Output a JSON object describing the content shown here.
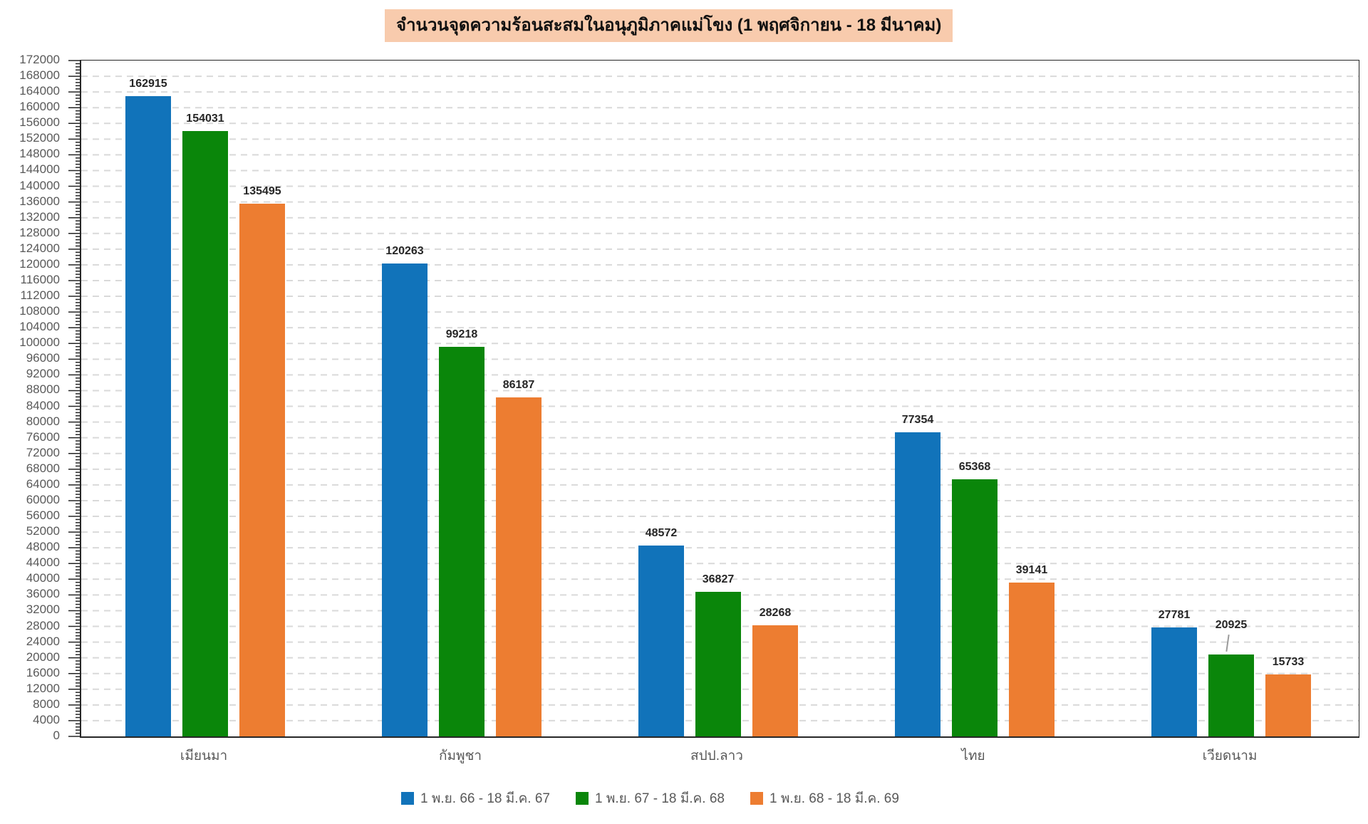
{
  "chart_data": {
    "type": "bar",
    "title": "จำนวนจุดความร้อนสะสมในอนุภูมิภาคแม่โขง (1 พฤศจิกายน - 18 มีนาคม)",
    "categories": [
      "เมียนมา",
      "กัมพูชา",
      "สปป.ลาว",
      "ไทย",
      "เวียดนาม"
    ],
    "series": [
      {
        "name": "1 พ.ย. 66 - 18 มี.ค. 67",
        "color": "#1173BA",
        "values": [
          162915,
          120263,
          48572,
          77354,
          27781
        ]
      },
      {
        "name": "1 พ.ย. 67 - 18 มี.ค. 68",
        "color": "#0A860A",
        "values": [
          154031,
          99218,
          36827,
          65368,
          20925
        ]
      },
      {
        "name": "1 พ.ย. 68 - 18 มี.ค. 69",
        "color": "#ED7D31",
        "values": [
          135495,
          86187,
          28268,
          39141,
          15733
        ]
      }
    ],
    "ylim": [
      0,
      172000
    ],
    "y_major_step": 4000,
    "y_minor_step": 800,
    "grid": "horizontal-dashed",
    "legend_position": "bottom",
    "data_labels": true,
    "label_with_leader": {
      "category_index": 4,
      "series_index": 1
    },
    "style": {
      "title_bg": "#F8CBAD",
      "gridline_color": "#D9D9D9",
      "axis_color": "#262626",
      "tick_label_color": "#595959",
      "data_label_color": "#262626"
    }
  }
}
